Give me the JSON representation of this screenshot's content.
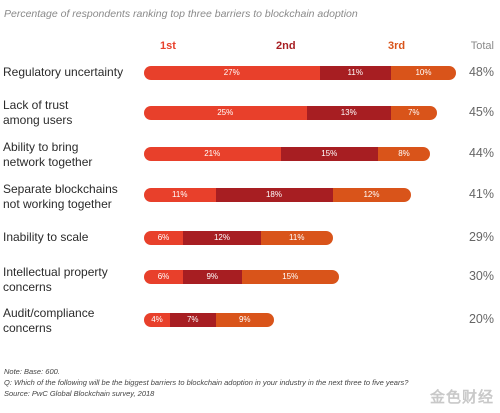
{
  "chart_data": {
    "type": "bar",
    "orientation": "horizontal",
    "stacked": true,
    "title": "Percentage of respondents ranking top three barriers to blockchain adoption",
    "rank_headers": [
      "1st",
      "2nd",
      "3rd"
    ],
    "total_header": "Total",
    "categories": [
      "Regulatory uncertainty",
      "Lack of trust\namong users",
      "Ability to bring\nnetwork together",
      "Separate blockchains\nnot working together",
      "Inability to scale",
      "Intellectual property\nconcerns",
      "Audit/compliance\nconcerns"
    ],
    "series": [
      {
        "name": "1st",
        "color": "#e8402b",
        "values": [
          27,
          25,
          21,
          11,
          6,
          6,
          4
        ]
      },
      {
        "name": "2nd",
        "color": "#a71e22",
        "values": [
          11,
          13,
          15,
          18,
          12,
          9,
          7
        ]
      },
      {
        "name": "3rd",
        "color": "#d9541a",
        "values": [
          10,
          7,
          8,
          12,
          11,
          15,
          9
        ]
      }
    ],
    "totals": [
      "48%",
      "45%",
      "44%",
      "41%",
      "29%",
      "30%",
      "20%"
    ],
    "value_suffix": "%"
  },
  "notes": [
    "Note: Base: 600.",
    "Q: Which of the following will be the biggest barriers to blockchain adoption in your industry in the next three to five years?",
    "Source: PwC Global Blockchain survey, 2018"
  ],
  "watermark": "金色财经"
}
